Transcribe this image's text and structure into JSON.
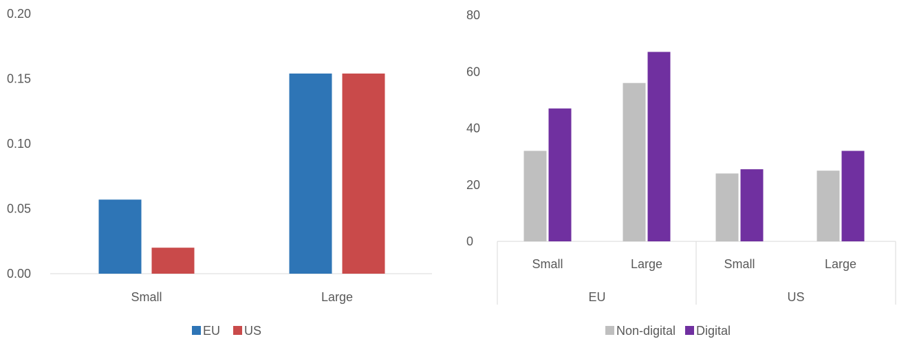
{
  "chart_data": [
    {
      "type": "bar",
      "categories": [
        "Small",
        "Large"
      ],
      "series": [
        {
          "name": "EU",
          "values": [
            0.057,
            0.154
          ],
          "color": "#2E75B6"
        },
        {
          "name": "US",
          "values": [
            0.02,
            0.154
          ],
          "color": "#C94A4A"
        }
      ],
      "yticks": [
        "0.00",
        "0.05",
        "0.10",
        "0.15",
        "0.20"
      ],
      "ylim": [
        0,
        0.2
      ],
      "grid": false,
      "legend": "bottom"
    },
    {
      "type": "bar",
      "groups": [
        {
          "label": "EU",
          "categories": [
            "Small",
            "Large"
          ]
        },
        {
          "label": "US",
          "categories": [
            "Small",
            "Large"
          ]
        }
      ],
      "series": [
        {
          "name": "Non-digital",
          "values": [
            32,
            56,
            24,
            25
          ],
          "color": "#BFBFBF"
        },
        {
          "name": "Digital",
          "values": [
            47,
            67,
            25.5,
            32
          ],
          "color": "#7030A0"
        }
      ],
      "yticks": [
        "0",
        "20",
        "40",
        "60",
        "80"
      ],
      "ylim": [
        0,
        80
      ],
      "grid": false,
      "legend": "bottom"
    }
  ]
}
